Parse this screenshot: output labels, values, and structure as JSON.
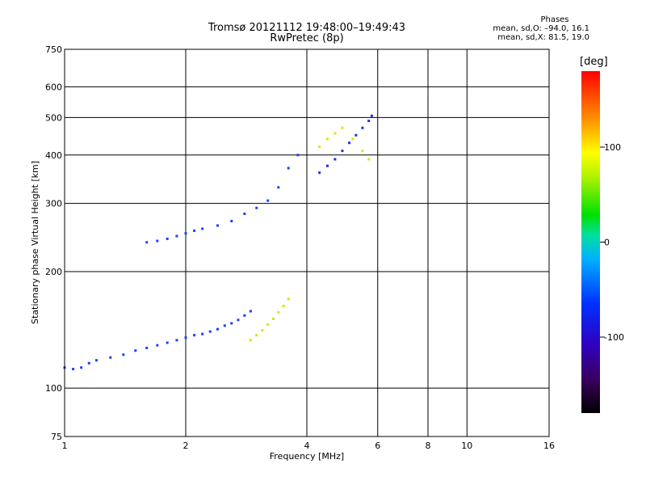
{
  "header": {
    "title_line1": "Tromsø 20121112 19:48:00–19:49:43",
    "title_line2": "RwPretec (8p)"
  },
  "stats": {
    "label": "Phases",
    "line_o": "mean, sd,O: –94.0, 16.1",
    "line_x": "mean, sd,X:  81.5, 19.0"
  },
  "chart_data": {
    "type": "scatter",
    "xlabel": "Frequency [MHz]",
    "ylabel": "Stationary phase Virtual Height [km]",
    "x_scale": "log",
    "y_scale": "log",
    "xlim": [
      1,
      16
    ],
    "ylim": [
      75,
      750
    ],
    "x_ticks": [
      1,
      2,
      4,
      6,
      8,
      10,
      16
    ],
    "y_ticks": [
      75,
      100,
      200,
      300,
      400,
      500,
      600,
      750
    ],
    "grid": true,
    "colorbar": {
      "label": "[deg]",
      "ticks": [
        100,
        0,
        -100
      ],
      "range": [
        -180,
        180
      ],
      "colormap": "rainbow (black→purple→blue→cyan→green→yellow→red)"
    },
    "series": [
      {
        "trace": "lower O-mode (blue)",
        "phase_deg": -100,
        "color": "#1f3fff",
        "points": [
          [
            1.0,
            113
          ],
          [
            1.05,
            112
          ],
          [
            1.1,
            113
          ],
          [
            1.15,
            116
          ],
          [
            1.2,
            118
          ],
          [
            1.3,
            120
          ],
          [
            1.4,
            122
          ],
          [
            1.5,
            125
          ],
          [
            1.6,
            127
          ],
          [
            1.7,
            129
          ],
          [
            1.8,
            131
          ],
          [
            1.9,
            133
          ],
          [
            2.0,
            135
          ],
          [
            2.1,
            137
          ],
          [
            2.2,
            138
          ],
          [
            2.3,
            140
          ],
          [
            2.4,
            142
          ],
          [
            2.5,
            145
          ],
          [
            2.6,
            147
          ],
          [
            2.7,
            150
          ],
          [
            2.8,
            154
          ],
          [
            2.9,
            158
          ]
        ]
      },
      {
        "trace": "lower X-mode (yellow-green)",
        "phase_deg": 80,
        "color": "#c8f000",
        "points": [
          [
            2.9,
            133
          ],
          [
            3.0,
            137
          ],
          [
            3.1,
            141
          ],
          [
            3.2,
            146
          ],
          [
            3.3,
            151
          ],
          [
            3.4,
            157
          ],
          [
            3.5,
            163
          ],
          [
            3.6,
            170
          ]
        ]
      },
      {
        "trace": "upper O-mode (blue)",
        "phase_deg": -100,
        "color": "#1f3fff",
        "points": [
          [
            1.6,
            238
          ],
          [
            1.7,
            240
          ],
          [
            1.8,
            243
          ],
          [
            1.9,
            247
          ],
          [
            2.0,
            251
          ],
          [
            2.1,
            255
          ],
          [
            2.2,
            258
          ],
          [
            2.4,
            263
          ],
          [
            2.6,
            270
          ],
          [
            2.8,
            282
          ],
          [
            3.0,
            292
          ],
          [
            3.2,
            305
          ],
          [
            3.4,
            330
          ],
          [
            3.6,
            370
          ],
          [
            3.8,
            400
          ]
        ]
      },
      {
        "trace": "F-layer high (blue-purple)",
        "phase_deg": -110,
        "color": "#2030e0",
        "points": [
          [
            4.3,
            360
          ],
          [
            4.5,
            375
          ],
          [
            4.7,
            390
          ],
          [
            4.9,
            410
          ],
          [
            5.1,
            430
          ],
          [
            5.3,
            450
          ],
          [
            5.5,
            470
          ],
          [
            5.7,
            490
          ],
          [
            5.8,
            505
          ]
        ]
      },
      {
        "trace": "F-layer X-mode (yellow/orange)",
        "phase_deg": 90,
        "color": "#e8e000",
        "points": [
          [
            4.3,
            420
          ],
          [
            4.5,
            440
          ],
          [
            4.7,
            455
          ],
          [
            4.9,
            470
          ],
          [
            5.2,
            440
          ],
          [
            5.5,
            410
          ],
          [
            5.7,
            390
          ]
        ]
      }
    ]
  }
}
